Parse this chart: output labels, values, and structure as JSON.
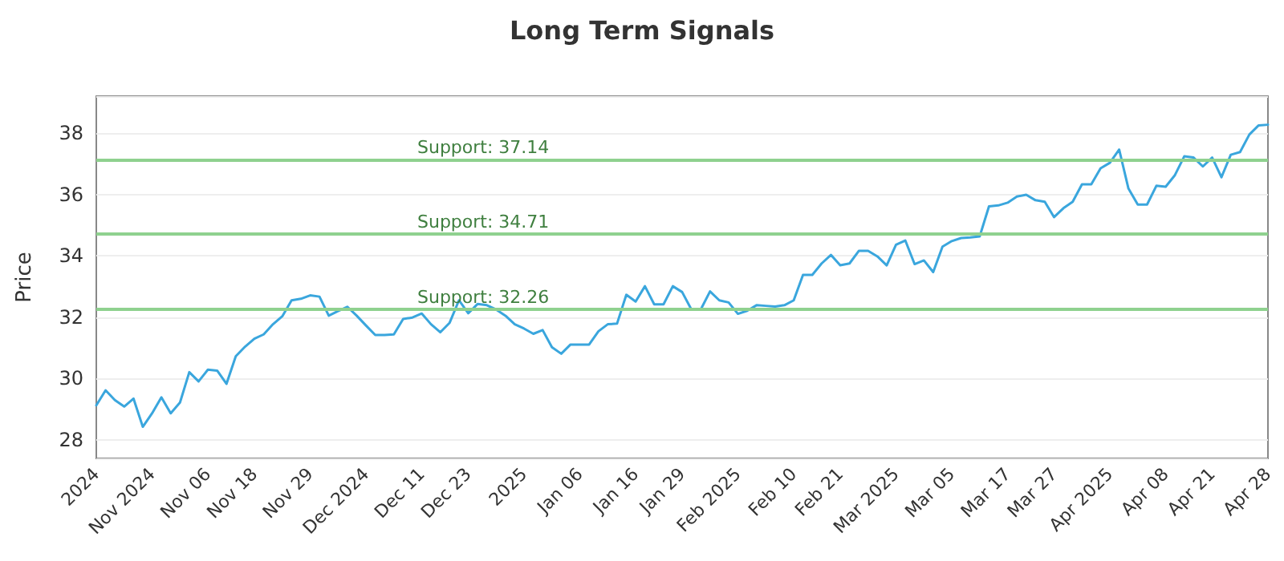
{
  "chart_data": {
    "type": "line",
    "title": "Long Term Signals",
    "ylabel": "Price",
    "categories": [
      "2024",
      null,
      null,
      null,
      null,
      null,
      "Nov 2024",
      null,
      null,
      null,
      null,
      null,
      "Nov 06",
      null,
      null,
      null,
      null,
      "Nov 18",
      null,
      null,
      null,
      null,
      null,
      "Nov 29",
      null,
      null,
      null,
      null,
      null,
      "Dec 2024",
      null,
      null,
      null,
      null,
      null,
      "Dec 11",
      null,
      null,
      null,
      null,
      "Dec 23",
      null,
      null,
      null,
      null,
      null,
      "2025",
      null,
      null,
      null,
      null,
      null,
      "Jan 06",
      null,
      null,
      null,
      null,
      null,
      "Jan 16",
      null,
      null,
      null,
      null,
      "Jan 29",
      null,
      null,
      null,
      null,
      null,
      "Feb 2025",
      null,
      null,
      null,
      null,
      null,
      "Feb 10",
      null,
      null,
      null,
      null,
      "Feb 21",
      null,
      null,
      null,
      null,
      null,
      "Mar 2025",
      null,
      null,
      null,
      null,
      null,
      "Mar 05",
      null,
      null,
      null,
      null,
      null,
      "Mar 17",
      null,
      null,
      null,
      null,
      "Mar 27",
      null,
      null,
      null,
      null,
      null,
      "Apr 2025",
      null,
      null,
      null,
      null,
      null,
      "Apr 08",
      null,
      null,
      null,
      null,
      "Apr 21",
      null,
      null,
      null,
      null,
      null,
      "Apr 28"
    ],
    "series": [
      {
        "color": "#3aa6dd",
        "values": [
          29.13,
          29.62,
          29.3,
          29.09,
          29.35,
          28.43,
          28.87,
          29.39,
          28.87,
          29.22,
          30.21,
          29.91,
          30.29,
          30.26,
          29.83,
          30.73,
          31.04,
          31.3,
          31.44,
          31.77,
          32.03,
          32.55,
          32.6,
          32.71,
          32.67,
          32.05,
          32.2,
          32.34,
          32.05,
          31.73,
          31.42,
          31.42,
          31.44,
          31.94,
          31.99,
          32.12,
          31.77,
          31.51,
          31.82,
          32.55,
          32.13,
          32.43,
          32.39,
          32.25,
          32.05,
          31.77,
          31.63,
          31.46,
          31.58,
          31.02,
          30.81,
          31.11,
          31.11,
          31.11,
          31.54,
          31.77,
          31.79,
          32.73,
          32.51,
          33.01,
          32.42,
          32.42,
          33.01,
          32.82,
          32.25,
          32.25,
          32.84,
          32.55,
          32.48,
          32.11,
          32.21,
          32.39,
          32.37,
          32.35,
          32.39,
          32.55,
          33.38,
          33.38,
          33.75,
          34.03,
          33.69,
          33.75,
          34.16,
          34.16,
          33.98,
          33.69,
          34.36,
          34.5,
          33.73,
          33.85,
          33.47,
          34.3,
          34.48,
          34.58,
          34.6,
          34.63,
          35.61,
          35.64,
          35.73,
          35.93,
          35.99,
          35.81,
          35.76,
          35.26,
          35.55,
          35.76,
          36.33,
          36.33,
          36.85,
          37.03,
          37.46,
          36.19,
          35.67,
          35.67,
          36.28,
          36.25,
          36.63,
          37.24,
          37.2,
          36.91,
          37.2,
          36.56,
          37.29,
          37.38,
          37.95,
          38.25,
          38.27
        ]
      }
    ],
    "ylim": [
      27.4,
      39.2
    ],
    "yticks": [
      28,
      30,
      32,
      34,
      36,
      38
    ],
    "grid": "y",
    "marker": "none",
    "line_style": "solid",
    "ref_lines": [
      {
        "axis": "y",
        "value": 37.14,
        "label": "Support: 37.14",
        "color": "#8fd18f"
      },
      {
        "axis": "y",
        "value": 34.71,
        "label": "Support: 34.71",
        "color": "#8fd18f"
      },
      {
        "axis": "y",
        "value": 32.26,
        "label": "Support: 32.26",
        "color": "#8fd18f"
      }
    ]
  }
}
